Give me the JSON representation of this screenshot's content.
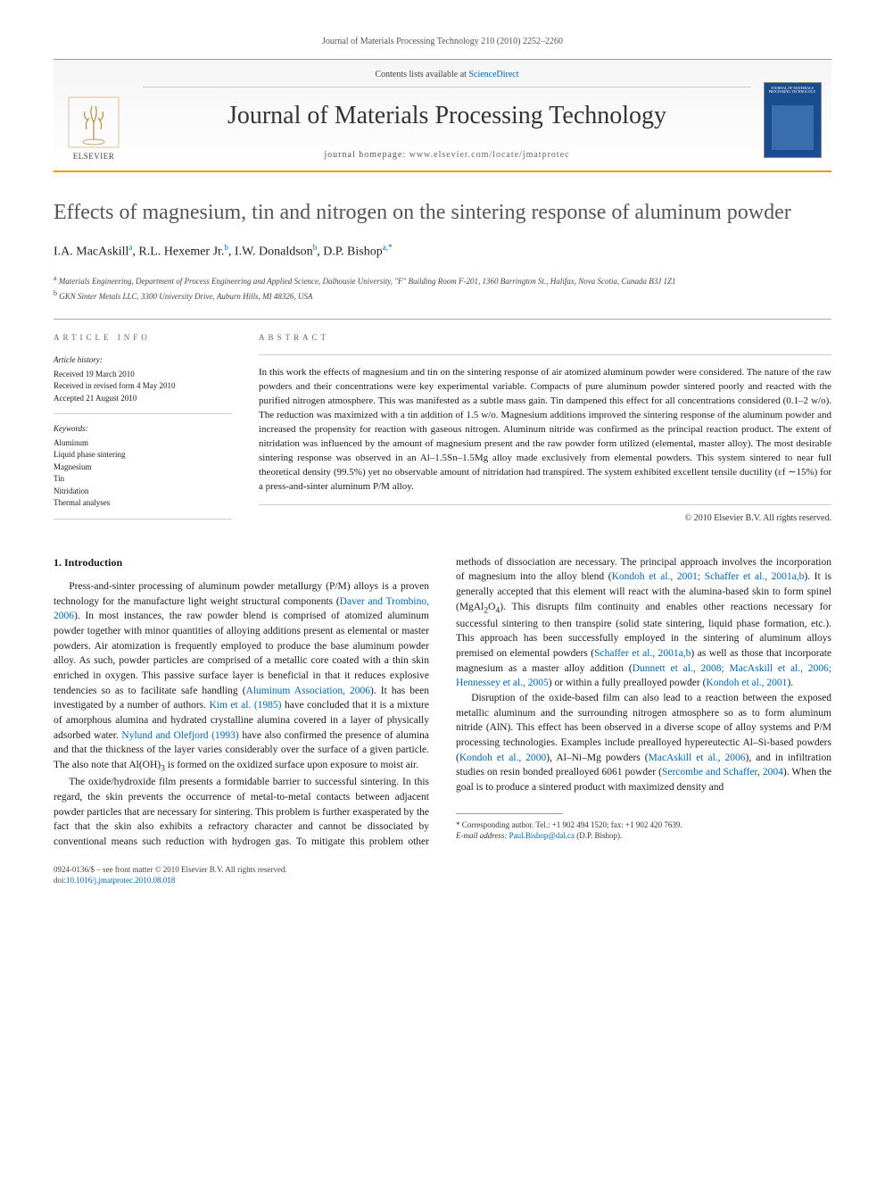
{
  "header": {
    "citation_line": "Journal of Materials Processing Technology 210 (2010) 2252–2260",
    "contents_prefix": "Contents lists available at ",
    "contents_link": "ScienceDirect",
    "journal_name": "Journal of Materials Processing Technology",
    "homepage_prefix": "journal homepage: ",
    "homepage_url": "www.elsevier.com/locate/jmatprotec",
    "publisher": "ELSEVIER"
  },
  "article": {
    "title": "Effects of magnesium, tin and nitrogen on the sintering response of aluminum powder",
    "authors_html": "I.A. MacAskill<sup>a</sup>, R.L. Hexemer Jr.<sup>b</sup>, I.W. Donaldson<sup>b</sup>, D.P. Bishop<sup>a,*</sup>",
    "affiliations": [
      "a Materials Engineering, Department of Process Engineering and Applied Science, Dalhousie University, \"F\" Building Room F-201, 1360 Barrington St., Halifax, Nova Scotia, Canada B3J 1Z1",
      "b GKN Sinter Metals LLC, 3300 University Drive, Auburn Hills, MI 48326, USA"
    ]
  },
  "info": {
    "heading": "article info",
    "history_label": "Article history:",
    "history": [
      "Received 19 March 2010",
      "Received in revised form 4 May 2010",
      "Accepted 21 August 2010"
    ],
    "keywords_label": "Keywords:",
    "keywords": [
      "Aluminum",
      "Liquid phase sintering",
      "Magnesium",
      "Tin",
      "Nitridation",
      "Thermal analyses"
    ]
  },
  "abstract": {
    "heading": "abstract",
    "body": "In this work the effects of magnesium and tin on the sintering response of air atomized aluminum powder were considered. The nature of the raw powders and their concentrations were key experimental variable. Compacts of pure aluminum powder sintered poorly and reacted with the purified nitrogen atmosphere. This was manifested as a subtle mass gain. Tin dampened this effect for all concentrations considered (0.1–2 w/o). The reduction was maximized with a tin addition of 1.5 w/o. Magnesium additions improved the sintering response of the aluminum powder and increased the propensity for reaction with gaseous nitrogen. Aluminum nitride was confirmed as the principal reaction product. The extent of nitridation was influenced by the amount of magnesium present and the raw powder form utilized (elemental, master alloy). The most desirable sintering response was observed in an Al–1.5Sn–1.5Mg alloy made exclusively from elemental powders. This system sintered to near full theoretical density (99.5%) yet no observable amount of nitridation had transpired. The system exhibited excellent tensile ductility (εf ∼15%) for a press-and-sinter aluminum P/M alloy.",
    "copyright": "© 2010 Elsevier B.V. All rights reserved."
  },
  "body": {
    "section1_heading": "1. Introduction",
    "p1": "Press-and-sinter processing of aluminum powder metallurgy (P/M) alloys is a proven technology for the manufacture light weight structural components (Daver and Trombino, 2006). In most instances, the raw powder blend is comprised of atomized aluminum powder together with minor quantities of alloying additions present as elemental or master powders. Air atomization is frequently employed to produce the base aluminum powder alloy. As such, powder particles are comprised of a metallic core coated with a thin skin enriched in oxygen. This passive surface layer is beneficial in that it reduces explosive tendencies so as to facilitate safe handling (Aluminum Association, 2006). It has been investigated by a number of authors. Kim et al. (1985) have concluded that it is a mixture of amorphous alumina and hydrated crystalline alumina covered in a layer of physically adsorbed water. Nylund and Olefjord (1993) have also confirmed the presence of alumina and that the thickness of the layer varies considerably over the surface of a given particle. The also note that Al(OH)3 is formed on the oxidized surface upon exposure to moist air.",
    "p2": "The oxide/hydroxide film presents a formidable barrier to successful sintering. In this regard, the skin prevents the occurrence of metal-to-metal contacts between adjacent powder particles that are necessary for sintering. This problem is further exasperated by the fact that the skin also exhibits a refractory character and cannot be dissociated by conventional means such reduction with hydrogen gas. To mitigate this problem other methods of dissociation are necessary. The principal approach involves the incorporation of magnesium into the alloy blend (Kondoh et al., 2001; Schaffer et al., 2001a,b). It is generally accepted that this element will react with the alumina-based skin to form spinel (MgAl2O4). This disrupts film continuity and enables other reactions necessary for successful sintering to then transpire (solid state sintering, liquid phase formation, etc.). This approach has been successfully employed in the sintering of aluminum alloys premised on elemental powders (Schaffer et al., 2001a,b) as well as those that incorporate magnesium as a master alloy addition (Dunnett et al., 2008; MacAskill et al., 2006; Hennessey et al., 2005) or within a fully prealloyed powder (Kondoh et al., 2001).",
    "p3": "Disruption of the oxide-based film can also lead to a reaction between the exposed metallic aluminum and the surrounding nitrogen atmosphere so as to form aluminum nitride (AlN). This effect has been observed in a diverse scope of alloy systems and P/M processing technologies. Examples include prealloyed hypereutectic Al–Si-based powders (Kondoh et al., 2000), Al–Ni–Mg powders (MacAskill et al., 2006), and in infiltration studies on resin bonded prealloyed 6061 powder (Sercombe and Schaffer, 2004). When the goal is to produce a sintered product with maximized density and"
  },
  "corresp": {
    "note": "* Corresponding author. Tel.: +1 902 494 1520; fax: +1 902 420 7639.",
    "email_label": "E-mail address: ",
    "email": "Paul.Bishop@dal.ca",
    "email_suffix": " (D.P. Bishop)."
  },
  "footer": {
    "line1": "0924-0136/$ – see front matter © 2010 Elsevier B.V. All rights reserved.",
    "doi_label": "doi:",
    "doi": "10.1016/j.jmatprotec.2010.08.018"
  },
  "colors": {
    "accent_orange": "#f7941e",
    "link_blue": "#0066aa",
    "cover_blue": "#1a4d8f",
    "text_gray": "#555"
  }
}
